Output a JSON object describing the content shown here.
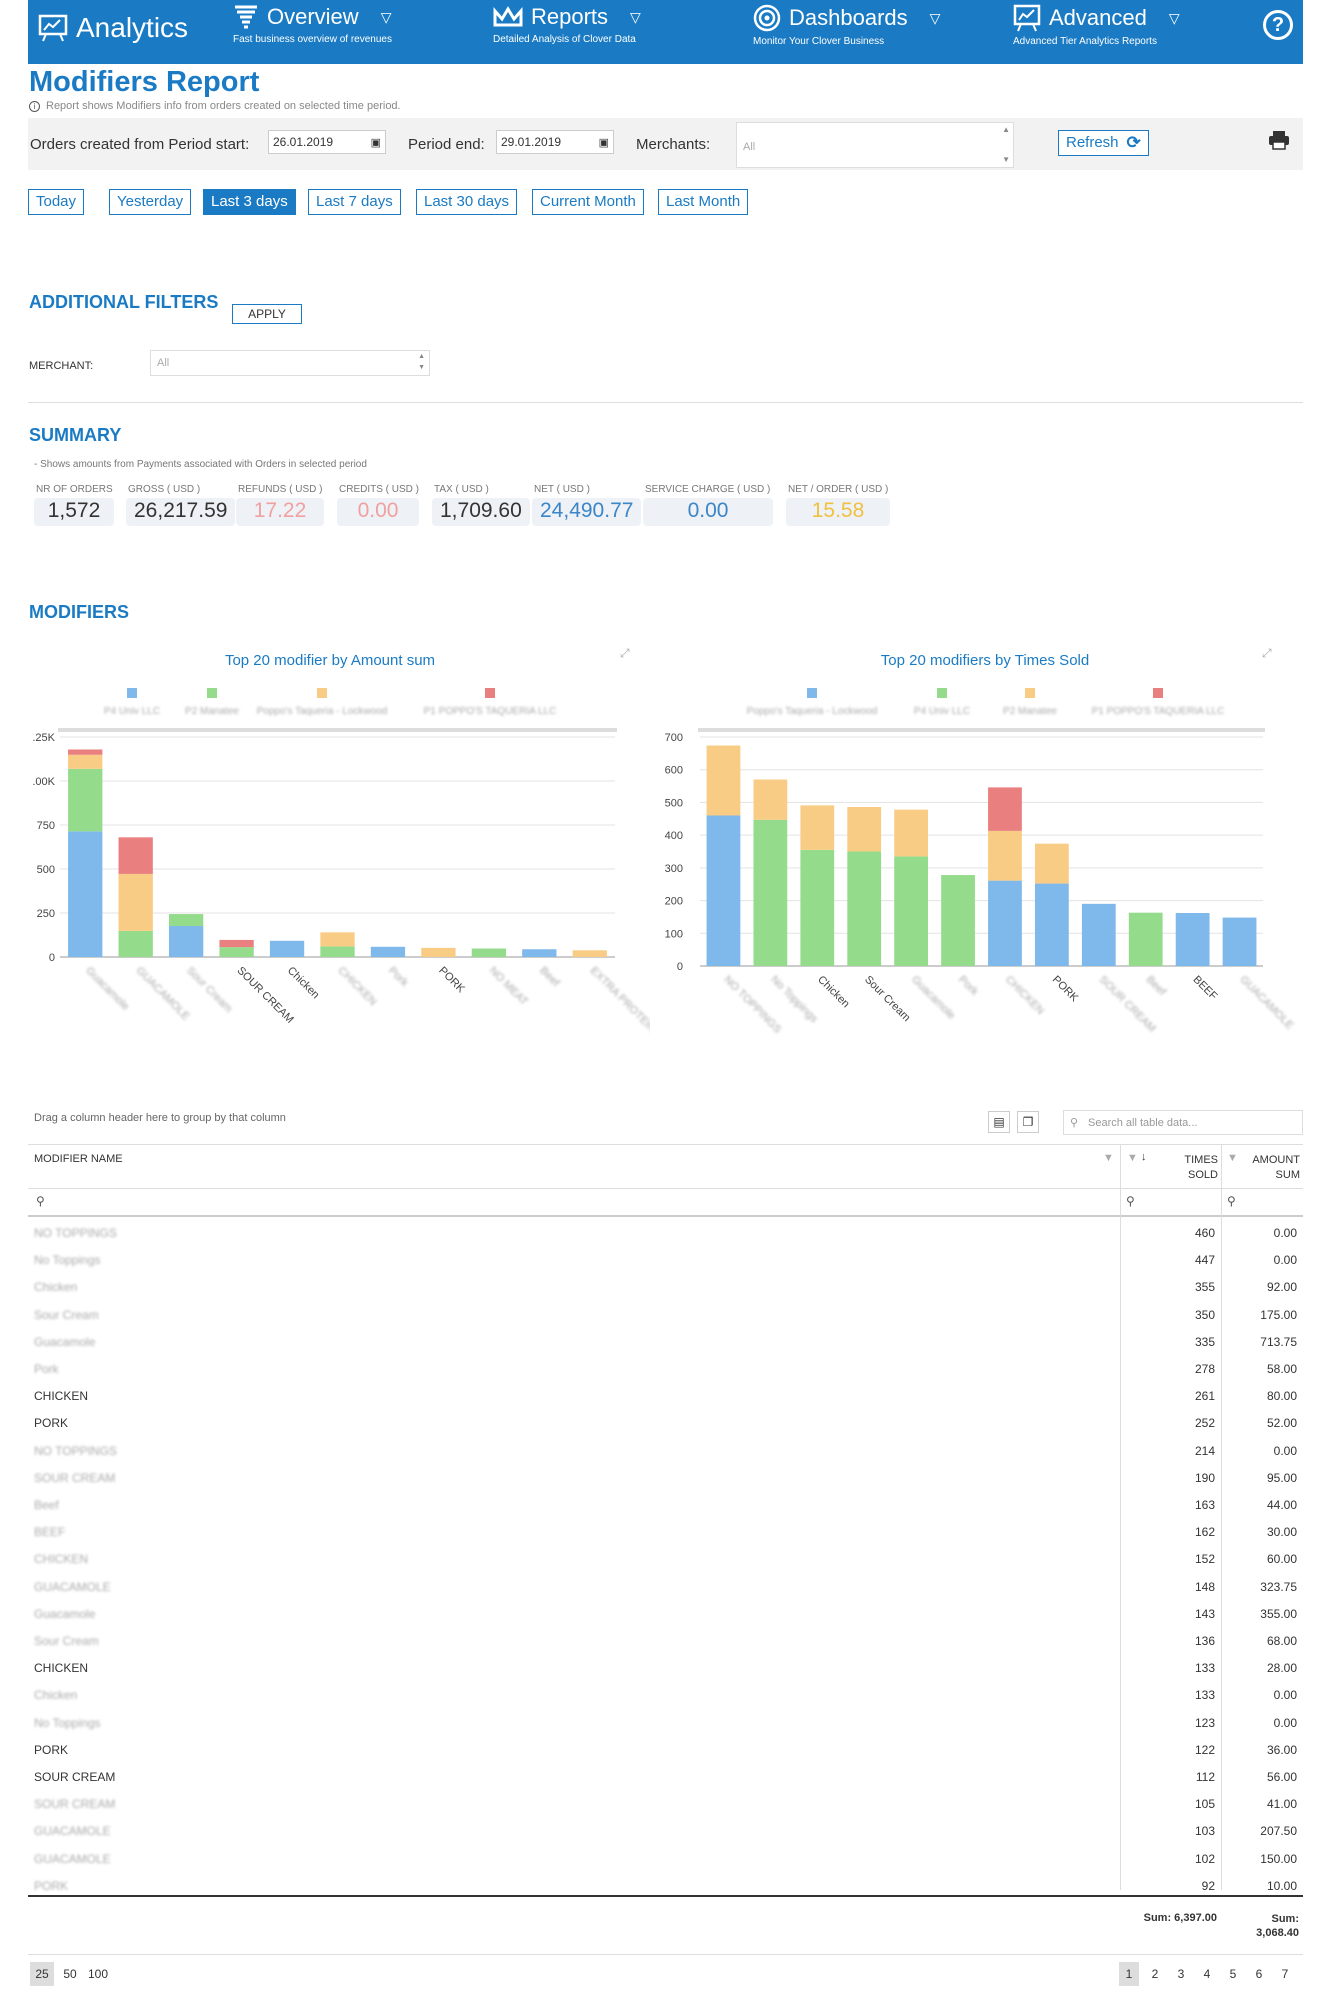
{
  "nav": {
    "brand": "Analytics",
    "items": [
      {
        "title": "Overview",
        "subtitle": "Fast business overview of revenues"
      },
      {
        "title": "Reports",
        "subtitle": "Detailed Analysis of Clover Data"
      },
      {
        "title": "Dashboards",
        "subtitle": "Monitor Your Clover Business"
      },
      {
        "title": "Advanced",
        "subtitle": "Advanced Tier Analytics Reports"
      }
    ],
    "help": "?"
  },
  "page": {
    "title": "Modifiers Report",
    "description": "Report shows Modifiers info from orders created on selected time period."
  },
  "filters": {
    "period_start_label": "Orders created from Period start:",
    "period_start_value": "26.01.2019",
    "period_end_label": "Period end:",
    "period_end_value": "29.01.2019",
    "merchants_label": "Merchants:",
    "merchants_value": "All",
    "refresh_label": "Refresh",
    "quick_ranges": [
      "Today",
      "Yesterday",
      "Last 3 days",
      "Last 7 days",
      "Last 30 days",
      "Current Month",
      "Last Month"
    ],
    "active_range": "Last 3 days"
  },
  "additional_filters": {
    "title": "ADDITIONAL FILTERS",
    "apply_label": "APPLY",
    "merchant_label": "MERCHANT:",
    "merchant_value": "All"
  },
  "summary": {
    "title": "SUMMARY",
    "note": "- Shows amounts from Payments associated with Orders in selected period",
    "stats": [
      {
        "label": "NR OF ORDERS",
        "value": "1,572",
        "color": "#333333"
      },
      {
        "label": "GROSS ( USD )",
        "value": "26,217.59",
        "color": "#333333"
      },
      {
        "label": "REFUNDS ( USD )",
        "value": "17.22",
        "color": "#f0a0a0"
      },
      {
        "label": "CREDITS ( USD )",
        "value": "0.00",
        "color": "#f0a0a0"
      },
      {
        "label": "TAX ( USD )",
        "value": "1,709.60",
        "color": "#333333"
      },
      {
        "label": "NET ( USD )",
        "value": "24,490.77",
        "color": "#3a86c8"
      },
      {
        "label": "SERVICE CHARGE ( USD )",
        "value": "0.00",
        "color": "#3a86c8"
      },
      {
        "label": "NET / ORDER ( USD )",
        "value": "15.58",
        "color": "#f0c040"
      }
    ]
  },
  "modifiers": {
    "title": "MODIFIERS"
  },
  "colors": {
    "blue": "#7fb8ea",
    "green": "#94dc8c",
    "orange": "#f8cc84",
    "red": "#ea7f7f",
    "accent": "#1a7bc4"
  },
  "chart_data": [
    {
      "type": "bar",
      "title": "Top 20 modifier by Amount sum",
      "legend": [
        "P4 Univ LLC",
        "P2 Manatee",
        "Poppo's Taqueria - Lockwood",
        "P1 POPPO'S TAQUERIA LLC"
      ],
      "legend_colors": [
        "#7fb8ea",
        "#94dc8c",
        "#f8cc84",
        "#ea7f7f"
      ],
      "yticks": [
        ".25K",
        ".00K",
        "750",
        "500",
        "250",
        "0"
      ],
      "ylim": [
        0,
        1250
      ],
      "categories": [
        "Guacamole",
        "GUACAMOLE",
        "Sour Cream",
        "SOUR CREAM",
        "Chicken",
        "CHICKEN",
        "Pork",
        "PORK",
        "NO MEAT",
        "Beef",
        "EXTRA PROTEIN"
      ],
      "category_blurred": [
        true,
        true,
        true,
        false,
        false,
        true,
        true,
        false,
        true,
        true,
        true
      ],
      "series": [
        {
          "name": "P4 Univ LLC",
          "values": [
            714,
            0,
            176,
            0,
            92,
            0,
            58,
            0,
            0,
            44,
            0
          ]
        },
        {
          "name": "P2 Manatee",
          "values": [
            355,
            148,
            68,
            56,
            0,
            60,
            0,
            0,
            48,
            0,
            0
          ]
        },
        {
          "name": "Poppo's Taqueria - Lockwood",
          "values": [
            80,
            324,
            0,
            0,
            0,
            80,
            0,
            52,
            0,
            0,
            38
          ]
        },
        {
          "name": "P1 POPPO'S TAQUERIA LLC",
          "values": [
            30,
            208,
            0,
            41,
            0,
            0,
            0,
            0,
            0,
            0,
            0
          ]
        }
      ]
    },
    {
      "type": "bar",
      "title": "Top 20 modifiers by Times Sold",
      "legend": [
        "Poppo's Taqueria - Lockwood",
        "P4 Univ LLC",
        "P2 Manatee",
        "P1 POPPO'S TAQUERIA LLC"
      ],
      "legend_colors": [
        "#7fb8ea",
        "#94dc8c",
        "#f8cc84",
        "#ea7f7f"
      ],
      "yticks": [
        "700",
        "600",
        "500",
        "400",
        "300",
        "200",
        "100",
        "0"
      ],
      "ylim": [
        0,
        700
      ],
      "categories": [
        "NO TOPPINGS",
        "No Toppings",
        "Chicken",
        "Sour Cream",
        "Guacamole",
        "Pork",
        "CHICKEN",
        "PORK",
        "SOUR CREAM",
        "Beef",
        "BEEF",
        "GUACAMOLE"
      ],
      "category_blurred": [
        true,
        true,
        false,
        false,
        true,
        true,
        true,
        false,
        true,
        true,
        false,
        true
      ],
      "series": [
        {
          "name": "Poppo's Taqueria - Lockwood",
          "values": [
            460,
            0,
            0,
            0,
            0,
            0,
            261,
            252,
            190,
            0,
            162,
            148
          ]
        },
        {
          "name": "P4 Univ LLC",
          "values": [
            0,
            447,
            355,
            350,
            335,
            278,
            0,
            0,
            0,
            163,
            0,
            0
          ]
        },
        {
          "name": "P2 Manatee",
          "values": [
            214,
            123,
            136,
            136,
            143,
            0,
            152,
            122,
            0,
            0,
            0,
            0
          ]
        },
        {
          "name": "P1 POPPO'S TAQUERIA LLC",
          "values": [
            0,
            0,
            0,
            0,
            0,
            0,
            133,
            0,
            0,
            0,
            0,
            0
          ]
        }
      ]
    }
  ],
  "table": {
    "group_hint": "Drag a column header here to group by that column",
    "search_placeholder": "Search all table data...",
    "headers": {
      "name": "MODIFIER NAME",
      "times_sold_1": "TIMES",
      "times_sold_2": "SOLD",
      "amount_1": "AMOUNT",
      "amount_2": "SUM"
    },
    "rows": [
      {
        "name": "NO TOPPINGS",
        "blur": true,
        "times": "460",
        "amount": "0.00"
      },
      {
        "name": "No Toppings",
        "blur": true,
        "times": "447",
        "amount": "0.00"
      },
      {
        "name": "Chicken",
        "blur": true,
        "times": "355",
        "amount": "92.00"
      },
      {
        "name": "Sour Cream",
        "blur": true,
        "times": "350",
        "amount": "175.00"
      },
      {
        "name": "Guacamole",
        "blur": true,
        "times": "335",
        "amount": "713.75"
      },
      {
        "name": "Pork",
        "blur": true,
        "times": "278",
        "amount": "58.00"
      },
      {
        "name": "CHICKEN",
        "blur": false,
        "times": "261",
        "amount": "80.00"
      },
      {
        "name": "PORK",
        "blur": false,
        "times": "252",
        "amount": "52.00"
      },
      {
        "name": "NO TOPPINGS",
        "blur": true,
        "times": "214",
        "amount": "0.00"
      },
      {
        "name": "SOUR CREAM",
        "blur": true,
        "times": "190",
        "amount": "95.00"
      },
      {
        "name": "Beef",
        "blur": true,
        "times": "163",
        "amount": "44.00"
      },
      {
        "name": "BEEF",
        "blur": true,
        "times": "162",
        "amount": "30.00"
      },
      {
        "name": "CHICKEN",
        "blur": true,
        "times": "152",
        "amount": "60.00"
      },
      {
        "name": "GUACAMOLE",
        "blur": true,
        "times": "148",
        "amount": "323.75"
      },
      {
        "name": "Guacamole",
        "blur": true,
        "times": "143",
        "amount": "355.00"
      },
      {
        "name": "Sour Cream",
        "blur": true,
        "times": "136",
        "amount": "68.00"
      },
      {
        "name": "CHICKEN",
        "blur": false,
        "times": "133",
        "amount": "28.00"
      },
      {
        "name": "Chicken",
        "blur": true,
        "times": "133",
        "amount": "0.00"
      },
      {
        "name": "No Toppings",
        "blur": true,
        "times": "123",
        "amount": "0.00"
      },
      {
        "name": "PORK",
        "blur": false,
        "times": "122",
        "amount": "36.00"
      },
      {
        "name": "SOUR CREAM",
        "blur": false,
        "times": "112",
        "amount": "56.00"
      },
      {
        "name": "SOUR CREAM",
        "blur": true,
        "times": "105",
        "amount": "41.00"
      },
      {
        "name": "GUACAMOLE",
        "blur": true,
        "times": "103",
        "amount": "207.50"
      },
      {
        "name": "GUACAMOLE",
        "blur": true,
        "times": "102",
        "amount": "150.00"
      },
      {
        "name": "PORK",
        "blur": true,
        "times": "92",
        "amount": "10.00"
      }
    ],
    "footer": {
      "times_sum": "Sum: 6,397.00",
      "amount_sum_label": "Sum:",
      "amount_sum": "3,068.40"
    },
    "page_sizes": [
      "25",
      "50",
      "100"
    ],
    "active_page_size": "25",
    "pages": [
      "1",
      "2",
      "3",
      "4",
      "5",
      "6",
      "7"
    ],
    "active_page": "1"
  }
}
